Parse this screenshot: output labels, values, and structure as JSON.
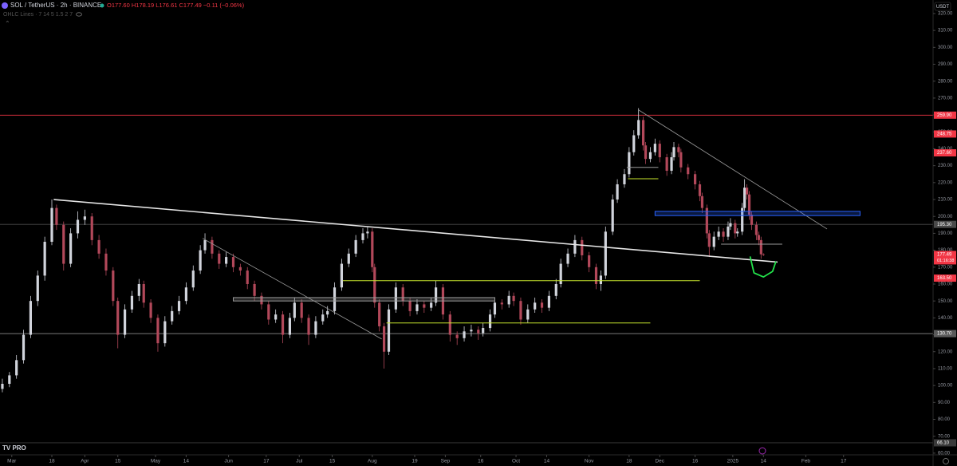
{
  "chart_data": {
    "type": "candlestick",
    "header": {
      "symbol": "SOL / TetherUS · 2h · BINANCE",
      "ohlc": "O177.60 H178.19 L176.61 C177.49 −0.11 (−0.06%)",
      "indicator": "OHLC Lines · 7 14 5 1.5 2 7"
    },
    "currency": "USDT",
    "countdown": "01:16:38",
    "logo": "TV PRO",
    "up_color": "#d1d4dc",
    "down_color": "#b2485a",
    "xlim": [
      -5,
      391
    ],
    "ylim": [
      59,
      328
    ],
    "yticks": [
      {
        "value": 320,
        "label": "320.00"
      },
      {
        "value": 310,
        "label": "310.00"
      },
      {
        "value": 300,
        "label": "300.00"
      },
      {
        "value": 290,
        "label": "290.00"
      },
      {
        "value": 280,
        "label": "280.00"
      },
      {
        "value": 270,
        "label": "270.00"
      },
      {
        "value": 260,
        "label": "260.00"
      },
      {
        "value": 250,
        "label": "250.00"
      },
      {
        "value": 240,
        "label": "240.00"
      },
      {
        "value": 230,
        "label": "230.00"
      },
      {
        "value": 220,
        "label": "220.00"
      },
      {
        "value": 210,
        "label": "210.00"
      },
      {
        "value": 200,
        "label": "200.00"
      },
      {
        "value": 190,
        "label": "190.00"
      },
      {
        "value": 180,
        "label": "180.00"
      },
      {
        "value": 170,
        "label": "170.00"
      },
      {
        "value": 160,
        "label": "160.00"
      },
      {
        "value": 150,
        "label": "150.00"
      },
      {
        "value": 140,
        "label": "140.00"
      },
      {
        "value": 130,
        "label": "130.00"
      },
      {
        "value": 120,
        "label": "120.00"
      },
      {
        "value": 110,
        "label": "110.00"
      },
      {
        "value": 100,
        "label": "100.00"
      },
      {
        "value": 90,
        "label": "90.00"
      },
      {
        "value": 80,
        "label": "80.00"
      },
      {
        "value": 70,
        "label": "70.00"
      },
      {
        "value": 60,
        "label": "60.00"
      }
    ],
    "xticks": [
      {
        "value": 0,
        "label": "Mar"
      },
      {
        "value": 17,
        "label": "18"
      },
      {
        "value": 31,
        "label": "Apr"
      },
      {
        "value": 45,
        "label": "15"
      },
      {
        "value": 61,
        "label": "May"
      },
      {
        "value": 74,
        "label": "14"
      },
      {
        "value": 92,
        "label": "Jun"
      },
      {
        "value": 108,
        "label": "17"
      },
      {
        "value": 122,
        "label": "Jul"
      },
      {
        "value": 136,
        "label": "15"
      },
      {
        "value": 153,
        "label": "Aug"
      },
      {
        "value": 171,
        "label": "19"
      },
      {
        "value": 184,
        "label": "Sep"
      },
      {
        "value": 199,
        "label": "16"
      },
      {
        "value": 214,
        "label": "Oct"
      },
      {
        "value": 227,
        "label": "14"
      },
      {
        "value": 245,
        "label": "Nov"
      },
      {
        "value": 262,
        "label": "18"
      },
      {
        "value": 275,
        "label": "Dec"
      },
      {
        "value": 290,
        "label": "16"
      },
      {
        "value": 306,
        "label": "2025"
      },
      {
        "value": 319,
        "label": "14"
      },
      {
        "value": 337,
        "label": "Feb"
      },
      {
        "value": 353,
        "label": "17"
      }
    ],
    "candles": [
      [
        -4,
        98,
        104,
        96,
        101
      ],
      [
        -1,
        101,
        108,
        99,
        106
      ],
      [
        2,
        106,
        118,
        104,
        115
      ],
      [
        5,
        115,
        133,
        113,
        130
      ],
      [
        8,
        130,
        153,
        128,
        150
      ],
      [
        11,
        150,
        168,
        147,
        165
      ],
      [
        14,
        165,
        188,
        162,
        185
      ],
      [
        17,
        185,
        210,
        183,
        205
      ],
      [
        19,
        205,
        207,
        192,
        195
      ],
      [
        22,
        195,
        197,
        168,
        172
      ],
      [
        25,
        172,
        193,
        170,
        190
      ],
      [
        28,
        190,
        203,
        187,
        198
      ],
      [
        31,
        198,
        204,
        195,
        200
      ],
      [
        34,
        200,
        202,
        183,
        186
      ],
      [
        37,
        186,
        189,
        175,
        178
      ],
      [
        40,
        178,
        181,
        165,
        168
      ],
      [
        43,
        168,
        170,
        147,
        150
      ],
      [
        45,
        150,
        152,
        122,
        130
      ],
      [
        48,
        130,
        148,
        128,
        145
      ],
      [
        51,
        145,
        156,
        143,
        153
      ],
      [
        54,
        153,
        163,
        150,
        160
      ],
      [
        56,
        160,
        162,
        146,
        149
      ],
      [
        59,
        149,
        151,
        137,
        140
      ],
      [
        62,
        140,
        142,
        120,
        125
      ],
      [
        65,
        125,
        141,
        123,
        138
      ],
      [
        68,
        138,
        147,
        136,
        144
      ],
      [
        71,
        144,
        153,
        142,
        150
      ],
      [
        74,
        150,
        161,
        148,
        158
      ],
      [
        77,
        158,
        171,
        156,
        168
      ],
      [
        80,
        168,
        183,
        166,
        180
      ],
      [
        82,
        180,
        190,
        178,
        186
      ],
      [
        85,
        186,
        188,
        175,
        178
      ],
      [
        88,
        178,
        180,
        169,
        172
      ],
      [
        91,
        172,
        179,
        170,
        176
      ],
      [
        94,
        176,
        178,
        167,
        170
      ],
      [
        97,
        170,
        172,
        165,
        168
      ],
      [
        100,
        168,
        170,
        157,
        160
      ],
      [
        103,
        160,
        162,
        150,
        153
      ],
      [
        106,
        153,
        155,
        145,
        148
      ],
      [
        109,
        148,
        150,
        136,
        139
      ],
      [
        112,
        139,
        145,
        137,
        142
      ],
      [
        115,
        142,
        144,
        125,
        130
      ],
      [
        118,
        130,
        143,
        128,
        140
      ],
      [
        120,
        140,
        152,
        138,
        149
      ],
      [
        123,
        149,
        151,
        137,
        140
      ],
      [
        126,
        140,
        142,
        124,
        130
      ],
      [
        129,
        130,
        141,
        128,
        138
      ],
      [
        132,
        138,
        145,
        136,
        142
      ],
      [
        134,
        142,
        147,
        140,
        144
      ],
      [
        137,
        144,
        161,
        142,
        158
      ],
      [
        140,
        158,
        175,
        156,
        172
      ],
      [
        143,
        172,
        181,
        170,
        178
      ],
      [
        146,
        178,
        189,
        176,
        186
      ],
      [
        149,
        186,
        193,
        184,
        190
      ],
      [
        151,
        190,
        194,
        187,
        191
      ],
      [
        153,
        191,
        193,
        167,
        170
      ],
      [
        154,
        170,
        172,
        146,
        149
      ],
      [
        156,
        149,
        151,
        132,
        135
      ],
      [
        158,
        135,
        137,
        110,
        120
      ],
      [
        160,
        120,
        148,
        118,
        145
      ],
      [
        163,
        145,
        161,
        143,
        158
      ],
      [
        166,
        158,
        160,
        147,
        150
      ],
      [
        169,
        150,
        152,
        141,
        144
      ],
      [
        172,
        144,
        151,
        142,
        148
      ],
      [
        175,
        148,
        150,
        143,
        146
      ],
      [
        178,
        146,
        152,
        144,
        149
      ],
      [
        180,
        149,
        162,
        147,
        158
      ],
      [
        183,
        158,
        160,
        139,
        142
      ],
      [
        186,
        142,
        144,
        126,
        130
      ],
      [
        189,
        130,
        132,
        124,
        128
      ],
      [
        192,
        128,
        135,
        126,
        132
      ],
      [
        195,
        132,
        136,
        129,
        133
      ],
      [
        198,
        133,
        135,
        127,
        131
      ],
      [
        200,
        131,
        137,
        129,
        134
      ],
      [
        203,
        134,
        145,
        132,
        142
      ],
      [
        205,
        142,
        152,
        140,
        149
      ],
      [
        208,
        149,
        151,
        145,
        148
      ],
      [
        211,
        148,
        156,
        146,
        153
      ],
      [
        213,
        153,
        155,
        147,
        150
      ],
      [
        216,
        150,
        152,
        136,
        139
      ],
      [
        219,
        139,
        148,
        137,
        145
      ],
      [
        222,
        145,
        152,
        143,
        149
      ],
      [
        225,
        149,
        151,
        143,
        146
      ],
      [
        228,
        146,
        156,
        144,
        153
      ],
      [
        231,
        153,
        163,
        151,
        160
      ],
      [
        233,
        160,
        175,
        158,
        172
      ],
      [
        236,
        172,
        181,
        170,
        178
      ],
      [
        239,
        178,
        189,
        176,
        186
      ],
      [
        242,
        186,
        188,
        174,
        177
      ],
      [
        245,
        177,
        179,
        167,
        170
      ],
      [
        248,
        170,
        172,
        157,
        160
      ],
      [
        250,
        160,
        168,
        156,
        165
      ],
      [
        252,
        165,
        194,
        163,
        191
      ],
      [
        255,
        191,
        213,
        189,
        210
      ],
      [
        257,
        210,
        222,
        208,
        219
      ],
      [
        260,
        219,
        228,
        217,
        225
      ],
      [
        262,
        225,
        241,
        223,
        238
      ],
      [
        264,
        238,
        251,
        236,
        248
      ],
      [
        266,
        248,
        264,
        246,
        257
      ],
      [
        268,
        257,
        259,
        239,
        242
      ],
      [
        269,
        242,
        244,
        231,
        234
      ],
      [
        271,
        234,
        241,
        232,
        238
      ],
      [
        273,
        238,
        246,
        236,
        243
      ],
      [
        275,
        243,
        245,
        232,
        235
      ],
      [
        278,
        235,
        237,
        224,
        227
      ],
      [
        280,
        227,
        238,
        225,
        235
      ],
      [
        281,
        235,
        244,
        233,
        241
      ],
      [
        283,
        241,
        243,
        235,
        238
      ],
      [
        284,
        238,
        240,
        226,
        229
      ],
      [
        287,
        229,
        231,
        222,
        225
      ],
      [
        290,
        225,
        227,
        216,
        219
      ],
      [
        292,
        219,
        221,
        209,
        212
      ],
      [
        293,
        212,
        214,
        202,
        205
      ],
      [
        295,
        205,
        207,
        187,
        190
      ],
      [
        296,
        190,
        192,
        176,
        182
      ],
      [
        298,
        182,
        191,
        180,
        188
      ],
      [
        300,
        188,
        194,
        186,
        191
      ],
      [
        302,
        191,
        193,
        185,
        188
      ],
      [
        304,
        188,
        197,
        186,
        194
      ],
      [
        305,
        194,
        199,
        192,
        196
      ],
      [
        307,
        196,
        198,
        187,
        190
      ],
      [
        308,
        190,
        193,
        188,
        191
      ],
      [
        310,
        191,
        208,
        189,
        205
      ],
      [
        311,
        205,
        222,
        203,
        217
      ],
      [
        312,
        217,
        219,
        210,
        213
      ],
      [
        313,
        213,
        215,
        198,
        201
      ],
      [
        314,
        201,
        203,
        192,
        195
      ],
      [
        316,
        195,
        197,
        186,
        189
      ],
      [
        317,
        189,
        191,
        183,
        186
      ],
      [
        318,
        186,
        188,
        175,
        177.6
      ],
      [
        319,
        177.6,
        178.19,
        176.61,
        177.49
      ]
    ],
    "hlines": [
      {
        "price": 259.9,
        "color": "#f23645"
      },
      {
        "price": 195.3,
        "color": "#4a4a4a"
      },
      {
        "price": 130.7,
        "color": "#8a8a8a"
      },
      {
        "price": 66.1,
        "color": "#3a3a3a"
      }
    ],
    "drawings": [
      {
        "kind": "line",
        "color": "#e6e6e6",
        "width": 1.6,
        "points": [
          17.8,
          210,
          325,
          173
        ]
      },
      {
        "kind": "line",
        "color": "#9a9a9a",
        "width": 0.8,
        "points": [
          81,
          187,
          157,
          127.5
        ]
      },
      {
        "kind": "line",
        "color": "#9a9a9a",
        "width": 0.8,
        "points": [
          266,
          263,
          346,
          192.6
        ]
      },
      {
        "kind": "rect",
        "color": "#2962ff",
        "points": [
          273,
          203,
          360,
          200.5
        ]
      },
      {
        "kind": "rect",
        "color": "#9a9a9a",
        "points": [
          94,
          152,
          205,
          150
        ]
      },
      {
        "kind": "line",
        "color": "#c8e62d",
        "width": 1,
        "points": [
          140.5,
          162,
          292,
          162
        ]
      },
      {
        "kind": "line",
        "color": "#c8e62d",
        "width": 1,
        "points": [
          159,
          137,
          271,
          137
        ]
      },
      {
        "kind": "line",
        "color": "#c8e62d",
        "width": 1,
        "points": [
          261.5,
          222.3,
          274.4,
          222.3
        ]
      },
      {
        "kind": "line",
        "color": "#9a9a9a",
        "width": 1,
        "points": [
          261,
          229,
          274.4,
          229
        ]
      },
      {
        "kind": "line",
        "color": "#9a9a9a",
        "width": 1,
        "points": [
          301,
          183.6,
          327,
          183.6
        ]
      },
      {
        "kind": "curve",
        "color": "#22e04a",
        "width": 1.8,
        "points": [
          313.4,
          176,
          315,
          166.6,
          319,
          164.2,
          322.9,
          167.5,
          324.2,
          173
        ]
      }
    ],
    "price_labels": [
      {
        "value": 259.9,
        "label": "259.90",
        "color": "#f23645"
      },
      {
        "value": 248.75,
        "label": "248.75",
        "color": "#f23645"
      },
      {
        "value": 237.6,
        "label": "237.60",
        "color": "#f23645"
      },
      {
        "value": 195.3,
        "label": "195.30",
        "color": "#4a4a4a"
      },
      {
        "value": 177.49,
        "label": "177.49",
        "color": "#f23645"
      },
      {
        "value": 163.5,
        "label": "163.50",
        "color": "#f23645"
      },
      {
        "value": 130.7,
        "label": "130.70",
        "color": "#5a5a5a"
      },
      {
        "value": 66.1,
        "label": "66.10",
        "color": "#3a3a3a"
      }
    ]
  }
}
